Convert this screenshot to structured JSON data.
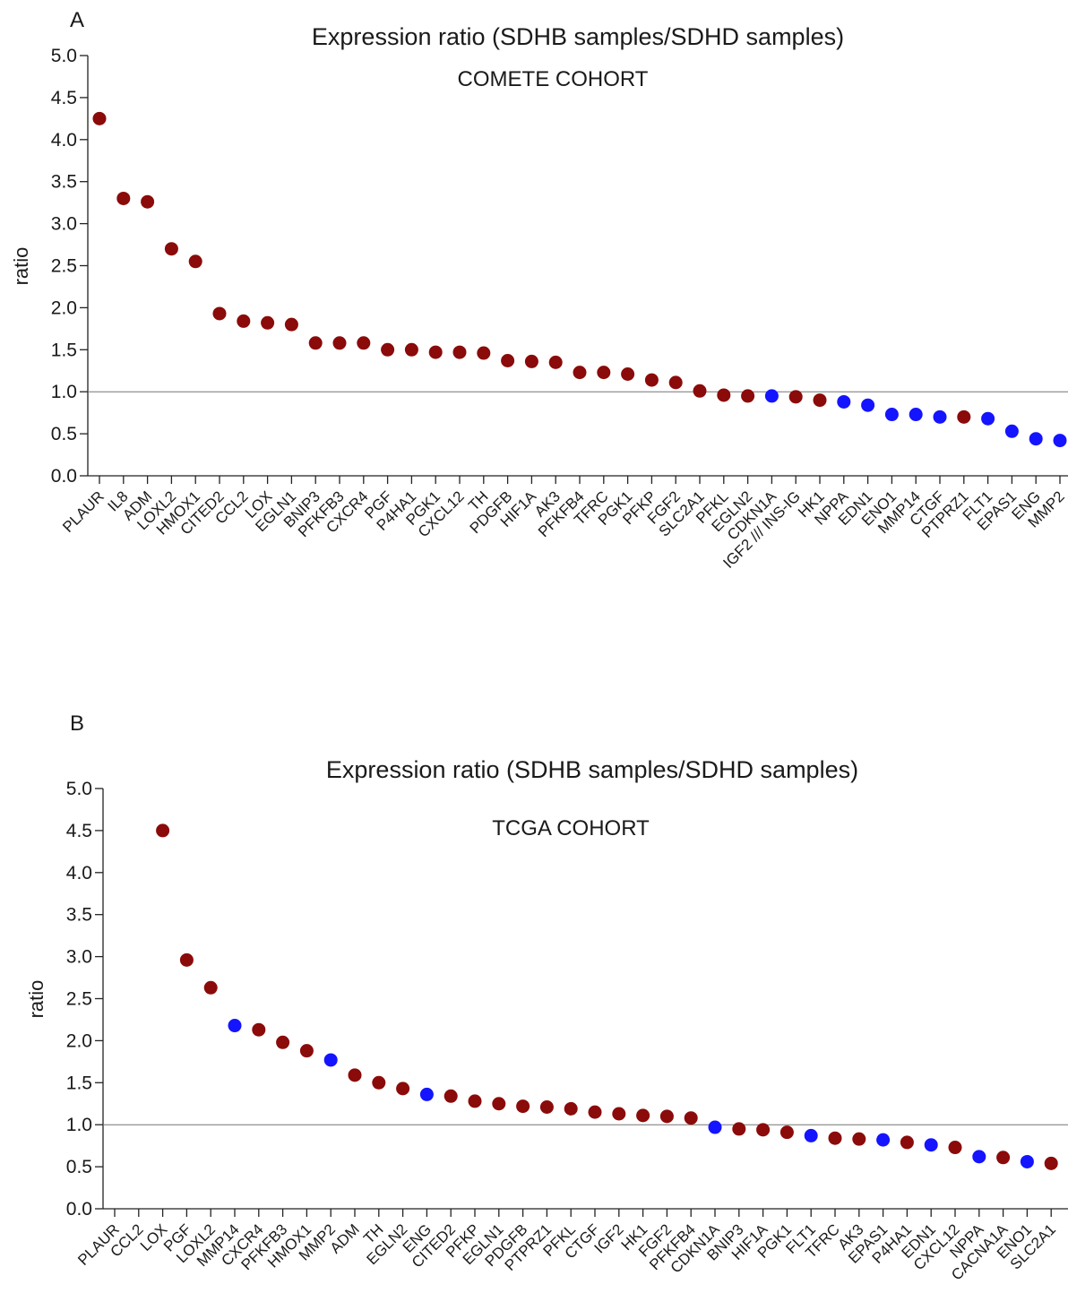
{
  "chart_data": [
    {
      "type": "scatter",
      "panel_label": "A",
      "title": "Expression ratio (SDHB samples/SDHD samples)",
      "subtitle": "COMETE COHORT",
      "xlabel": "",
      "ylabel": "ratio",
      "ylim": [
        0,
        5
      ],
      "yticks": [
        "0.0",
        "0.5",
        "1.0",
        "1.5",
        "2.0",
        "2.5",
        "3.0",
        "3.5",
        "4.0",
        "4.5",
        "5.0"
      ],
      "reference_line": 1.0,
      "grid": false,
      "legend": "none",
      "colors": {
        "red": "#8b0a0a",
        "blue": "#1414ff"
      },
      "categories": [
        "PLAUR",
        "IL8",
        "ADM",
        "LOXL2",
        "HMOX1",
        "CITED2",
        "CCL2",
        "LOX",
        "EGLN1",
        "BNIP3",
        "PFKFB3",
        "CXCR4",
        "PGF",
        "P4HA1",
        "PGK1",
        "CXCL12",
        "TH",
        "PDGFB",
        "HIF1A",
        "AK3",
        "PFKFB4",
        "TFRC",
        "PGK1",
        "PFKP",
        "FGF2",
        "SLC2A1",
        "PFKL",
        "EGLN2",
        "CDKN1A",
        "IGF2 /// INS-IG",
        "HK1",
        "NPPA",
        "EDN1",
        "ENO1",
        "MMP14",
        "CTGF",
        "PTPRZ1",
        "FLT1",
        "EPAS1",
        "ENG",
        "MMP2"
      ],
      "values": [
        4.25,
        3.3,
        3.26,
        2.7,
        2.55,
        1.93,
        1.84,
        1.82,
        1.8,
        1.58,
        1.58,
        1.58,
        1.5,
        1.5,
        1.47,
        1.47,
        1.46,
        1.37,
        1.36,
        1.35,
        1.23,
        1.23,
        1.21,
        1.14,
        1.11,
        1.01,
        0.96,
        0.95,
        0.95,
        0.94,
        0.9,
        0.88,
        0.84,
        0.73,
        0.73,
        0.7,
        0.7,
        0.68,
        0.53,
        0.44,
        0.42
      ],
      "point_colors": [
        "red",
        "red",
        "red",
        "red",
        "red",
        "red",
        "red",
        "red",
        "red",
        "red",
        "red",
        "red",
        "red",
        "red",
        "red",
        "red",
        "red",
        "red",
        "red",
        "red",
        "red",
        "red",
        "red",
        "red",
        "red",
        "red",
        "red",
        "red",
        "blue",
        "red",
        "red",
        "blue",
        "blue",
        "blue",
        "blue",
        "blue",
        "red",
        "blue",
        "blue",
        "blue",
        "blue"
      ]
    },
    {
      "type": "scatter",
      "panel_label": "B",
      "title": "Expression ratio (SDHB samples/SDHD samples)",
      "subtitle": "TCGA COHORT",
      "xlabel": "",
      "ylabel": "ratio",
      "ylim": [
        0,
        5
      ],
      "yticks": [
        "0.0",
        "0.5",
        "1.0",
        "1.5",
        "2.0",
        "2.5",
        "3.0",
        "3.5",
        "4.0",
        "4.5",
        "5.0"
      ],
      "reference_line": 1.0,
      "grid": false,
      "legend": "none",
      "colors": {
        "red": "#8b0a0a",
        "blue": "#1414ff"
      },
      "categories": [
        "PLAUR",
        "CCL2",
        "LOX",
        "PGF",
        "LOXL2",
        "MMP14",
        "CXCR4",
        "PFKFB3",
        "HMOX1",
        "MMP2",
        "ADM",
        "TH",
        "EGLN2",
        "ENG",
        "CITED2",
        "PFKP",
        "EGLN1",
        "PDGFB",
        "PTPRZ1",
        "PFKL",
        "CTGF",
        "IGF2",
        "HK1",
        "FGF2",
        "PFKFB4",
        "CDKN1A",
        "BNIP3",
        "HIF1A",
        "PGK1",
        "FLT1",
        "TFRC",
        "AK3",
        "EPAS1",
        "P4HA1",
        "EDN1",
        "CXCL12",
        "NPPA",
        "CACNA1A",
        "ENO1",
        "SLC2A1"
      ],
      "values": [
        null,
        null,
        4.5,
        2.96,
        2.63,
        2.18,
        2.13,
        1.98,
        1.88,
        1.77,
        1.59,
        1.5,
        1.43,
        1.36,
        1.34,
        1.28,
        1.25,
        1.22,
        1.21,
        1.19,
        1.15,
        1.13,
        1.11,
        1.1,
        1.08,
        0.97,
        0.95,
        0.94,
        0.91,
        0.87,
        0.84,
        0.83,
        0.82,
        0.79,
        0.76,
        0.73,
        0.62,
        0.61,
        0.56,
        0.54
      ],
      "point_colors": [
        null,
        null,
        "red",
        "red",
        "red",
        "blue",
        "red",
        "red",
        "red",
        "blue",
        "red",
        "red",
        "red",
        "blue",
        "red",
        "red",
        "red",
        "red",
        "red",
        "red",
        "red",
        "red",
        "red",
        "red",
        "red",
        "blue",
        "red",
        "red",
        "red",
        "blue",
        "red",
        "red",
        "blue",
        "red",
        "blue",
        "red",
        "blue",
        "red",
        "blue",
        "red"
      ]
    }
  ]
}
